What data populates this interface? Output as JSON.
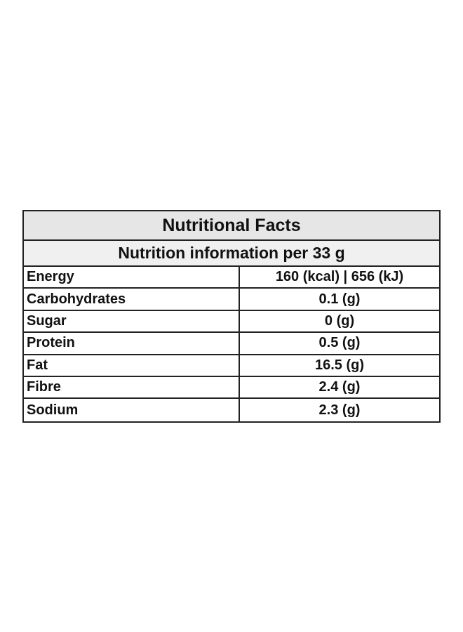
{
  "table": {
    "title": "Nutritional Facts",
    "subtitle": "Nutrition information per 33 g",
    "rows": [
      {
        "name": "Energy",
        "value": "160 (kcal) | 656 (kJ)"
      },
      {
        "name": "Carbohydrates",
        "value": "0.1 (g)"
      },
      {
        "name": "Sugar",
        "value": "0 (g)"
      },
      {
        "name": "Protein",
        "value": "0.5 (g)"
      },
      {
        "name": "Fat",
        "value": "16.5 (g)"
      },
      {
        "name": "Fibre",
        "value": "2.4 (g)"
      },
      {
        "name": "Sodium",
        "value": "2.3 (g)"
      }
    ]
  }
}
